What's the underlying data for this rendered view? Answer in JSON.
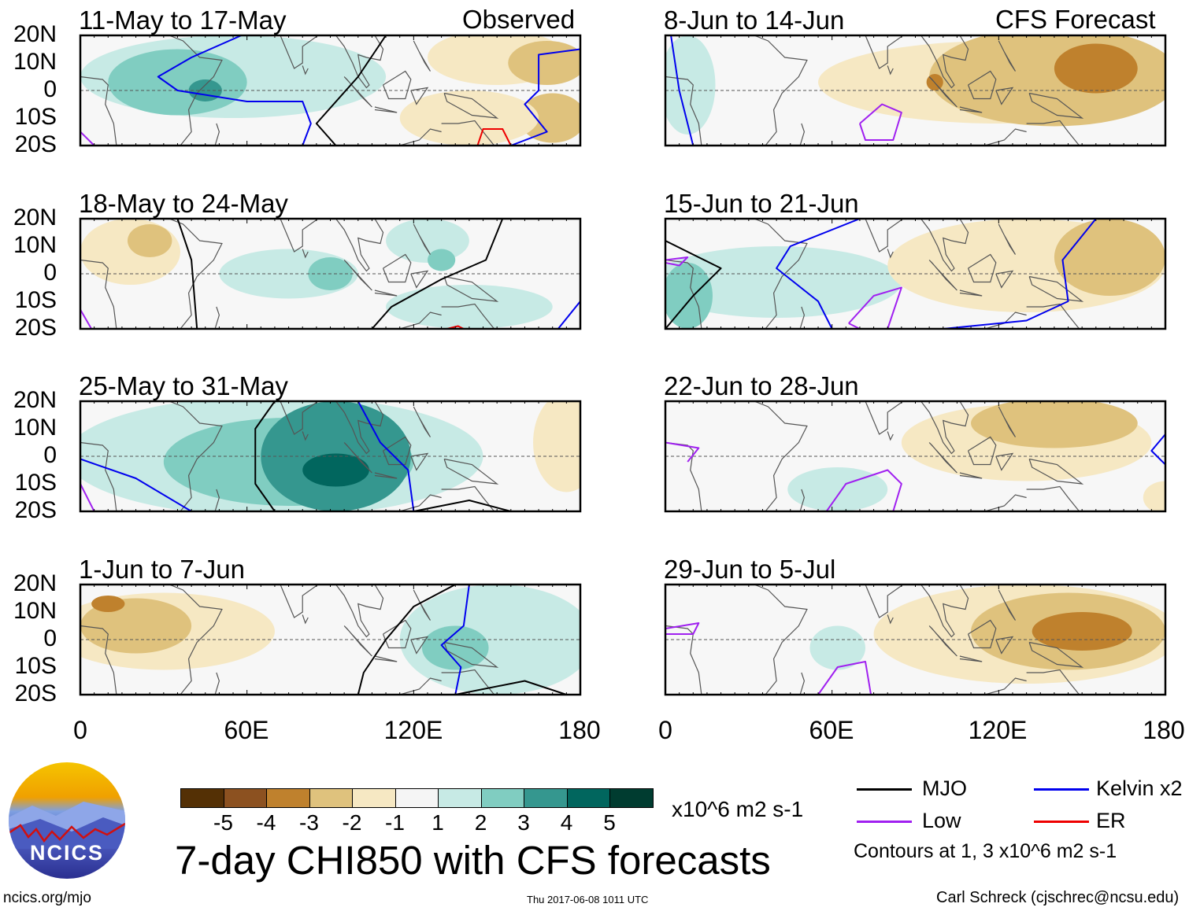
{
  "headers": {
    "observed": "Observed",
    "forecast": "CFS Forecast"
  },
  "y_ticks": [
    "20N",
    "10N",
    "0",
    "10S",
    "20S"
  ],
  "x_ticks": [
    "0",
    "60E",
    "120E",
    "180"
  ],
  "colors": {
    "-5": "#543005",
    "-4": "#8c5120",
    "-3": "#bf812d",
    "-2": "#dfc27d",
    "-1": "#f6e8c3",
    "1": "#c7eae5",
    "2": "#80cdc1",
    "3": "#35978f",
    "4": "#01665e",
    "5": "#003c30",
    "MJO": "#000000",
    "Kelvin": "#0000ee",
    "Low": "#a020f0",
    "ER": "#ee0000"
  },
  "colorbar": {
    "labels": [
      "-5",
      "-4",
      "-3",
      "-2",
      "-1",
      "1",
      "2",
      "3",
      "4",
      "5"
    ],
    "units": "x10^6 m2 s-1"
  },
  "title": "7-day CHI850 with CFS forecasts",
  "timestamp": "Thu 2017-06-08 1011 UTC",
  "legend": {
    "mjo": "MJO",
    "kelvin": "Kelvin x2",
    "low": "Low",
    "er": "ER",
    "contours_note": "Contours at 1, 3 x10^6 m2 s-1"
  },
  "footer": {
    "url": "ncics.org/mjo",
    "author": "Carl Schreck (cjschrec@ncsu.edu)"
  },
  "logo": {
    "text": "NCICS"
  },
  "chart_data": {
    "type": "heatmap",
    "xlim": [
      0,
      180
    ],
    "ylim": [
      -20,
      20
    ],
    "panels": [
      {
        "title": "11-May to 17-May",
        "column": "observed",
        "blobs": [
          [
            55,
            5,
            55,
            15,
            1
          ],
          [
            35,
            3,
            25,
            12,
            2
          ],
          [
            45,
            0,
            6,
            4,
            3
          ],
          [
            150,
            12,
            25,
            10,
            -1
          ],
          [
            168,
            10,
            14,
            8,
            -2
          ],
          [
            170,
            -10,
            12,
            9,
            -2
          ],
          [
            140,
            -10,
            25,
            10,
            -1
          ]
        ],
        "contours": [
          [
            "Kelvin",
            [
              [
                58,
                20
              ],
              [
                40,
                12
              ],
              [
                28,
                5
              ],
              [
                35,
                0
              ],
              [
                60,
                -4
              ],
              [
                80,
                -4
              ],
              [
                83,
                -12
              ],
              [
                80,
                -20
              ]
            ]
          ],
          [
            "MJO",
            [
              [
                110,
                20
              ],
              [
                100,
                5
              ],
              [
                85,
                -12
              ],
              [
                92,
                -20
              ]
            ]
          ],
          [
            "Kelvin",
            [
              [
                180,
                15
              ],
              [
                165,
                13
              ],
              [
                165,
                0
              ],
              [
                160,
                -5
              ],
              [
                168,
                -15
              ],
              [
                155,
                -20
              ]
            ]
          ],
          [
            "ER",
            [
              [
                143,
                -20
              ],
              [
                145,
                -14
              ],
              [
                152,
                -14
              ],
              [
                155,
                -20
              ]
            ]
          ],
          [
            "Low",
            [
              [
                0,
                -15
              ],
              [
                5,
                -20
              ]
            ]
          ]
        ]
      },
      {
        "title": "18-May to 24-May",
        "column": "observed",
        "blobs": [
          [
            18,
            8,
            18,
            12,
            -1
          ],
          [
            25,
            12,
            8,
            6,
            -2
          ],
          [
            75,
            0,
            25,
            9,
            1
          ],
          [
            90,
            0,
            8,
            6,
            2
          ],
          [
            140,
            -12,
            30,
            8,
            1
          ],
          [
            125,
            12,
            15,
            8,
            1
          ],
          [
            130,
            5,
            5,
            4,
            2
          ]
        ],
        "contours": [
          [
            "MJO",
            [
              [
                35,
                20
              ],
              [
                40,
                5
              ],
              [
                42,
                -20
              ]
            ]
          ],
          [
            "MJO",
            [
              [
                152,
                20
              ],
              [
                146,
                5
              ],
              [
                130,
                -2
              ],
              [
                112,
                -12
              ],
              [
                105,
                -20
              ]
            ]
          ],
          [
            "Kelvin",
            [
              [
                172,
                -20
              ],
              [
                180,
                -10
              ]
            ]
          ],
          [
            "ER",
            [
              [
                132,
                -20
              ],
              [
                136,
                -19
              ],
              [
                138,
                -20
              ]
            ]
          ],
          [
            "Low",
            [
              [
                0,
                -13
              ],
              [
                4,
                -20
              ]
            ]
          ]
        ]
      },
      {
        "title": "25-May to 31-May",
        "column": "observed",
        "blobs": [
          [
            70,
            0,
            75,
            22,
            1
          ],
          [
            75,
            -2,
            45,
            16,
            2
          ],
          [
            92,
            0,
            27,
            20,
            3
          ],
          [
            92,
            -5,
            12,
            6,
            4
          ],
          [
            175,
            5,
            12,
            18,
            -1
          ]
        ],
        "contours": [
          [
            "MJO",
            [
              [
                70,
                20
              ],
              [
                63,
                10
              ],
              [
                63,
                -10
              ],
              [
                70,
                -20
              ]
            ]
          ],
          [
            "MJO",
            [
              [
                120,
                -20
              ],
              [
                140,
                -16
              ],
              [
                155,
                -20
              ]
            ]
          ],
          [
            "Kelvin",
            [
              [
                0,
                -1
              ],
              [
                20,
                -8
              ],
              [
                40,
                -20
              ]
            ]
          ],
          [
            "Kelvin",
            [
              [
                100,
                20
              ],
              [
                108,
                5
              ],
              [
                118,
                -5
              ],
              [
                120,
                -20
              ]
            ]
          ],
          [
            "Low",
            [
              [
                0,
                -10
              ],
              [
                5,
                -20
              ]
            ]
          ]
        ]
      },
      {
        "title": "1-Jun to 7-Jun",
        "column": "observed",
        "blobs": [
          [
            30,
            3,
            40,
            14,
            -1
          ],
          [
            20,
            5,
            20,
            10,
            -2
          ],
          [
            10,
            13,
            6,
            3,
            -3
          ],
          [
            150,
            0,
            35,
            20,
            1
          ],
          [
            135,
            -3,
            12,
            8,
            2
          ]
        ],
        "contours": [
          [
            "MJO",
            [
              [
                135,
                20
              ],
              [
                120,
                12
              ],
              [
                110,
                0
              ],
              [
                102,
                -12
              ],
              [
                100,
                -20
              ]
            ]
          ],
          [
            "MJO",
            [
              [
                135,
                -20
              ],
              [
                160,
                -15
              ],
              [
                175,
                -20
              ]
            ]
          ],
          [
            "Kelvin",
            [
              [
                140,
                20
              ],
              [
                138,
                5
              ],
              [
                130,
                -2
              ],
              [
                137,
                -10
              ],
              [
                135,
                -20
              ]
            ]
          ]
        ]
      },
      {
        "title": "8-Jun to 14-Jun",
        "column": "forecast",
        "blobs": [
          [
            120,
            3,
            65,
            15,
            -1
          ],
          [
            140,
            5,
            45,
            18,
            -2
          ],
          [
            155,
            8,
            15,
            9,
            -3
          ],
          [
            97,
            3,
            3,
            3,
            -3
          ],
          [
            8,
            2,
            10,
            18,
            1
          ]
        ],
        "contours": [
          [
            "Kelvin",
            [
              [
                2,
                20
              ],
              [
                5,
                0
              ],
              [
                10,
                -20
              ]
            ]
          ],
          [
            "Low",
            [
              [
                70,
                -12
              ],
              [
                78,
                -5
              ],
              [
                85,
                -8
              ],
              [
                82,
                -18
              ],
              [
                72,
                -18
              ],
              [
                70,
                -12
              ]
            ]
          ]
        ]
      },
      {
        "title": "15-Jun to 21-Jun",
        "column": "forecast",
        "blobs": [
          [
            40,
            -3,
            45,
            13,
            1
          ],
          [
            8,
            -8,
            9,
            12,
            2
          ],
          [
            130,
            3,
            50,
            17,
            -1
          ],
          [
            160,
            6,
            20,
            14,
            -2
          ]
        ],
        "contours": [
          [
            "MJO",
            [
              [
                0,
                12
              ],
              [
                20,
                2
              ],
              [
                10,
                -8
              ],
              [
                0,
                -20
              ]
            ]
          ],
          [
            "Kelvin",
            [
              [
                70,
                20
              ],
              [
                45,
                10
              ],
              [
                40,
                2
              ],
              [
                55,
                -10
              ],
              [
                60,
                -20
              ]
            ]
          ],
          [
            "Kelvin",
            [
              [
                100,
                -20
              ],
              [
                130,
                -17
              ],
              [
                145,
                -10
              ],
              [
                143,
                5
              ],
              [
                155,
                20
              ]
            ]
          ],
          [
            "Low",
            [
              [
                66,
                -18
              ],
              [
                75,
                -8
              ],
              [
                85,
                -5
              ],
              [
                80,
                -20
              ],
              [
                70,
                -20
              ],
              [
                66,
                -18
              ]
            ]
          ],
          [
            "Low",
            [
              [
                0,
                5
              ],
              [
                8,
                6
              ],
              [
                5,
                3
              ],
              [
                0,
                4
              ]
            ]
          ]
        ]
      },
      {
        "title": "22-Jun to 28-Jun",
        "column": "forecast",
        "blobs": [
          [
            130,
            5,
            45,
            14,
            -1
          ],
          [
            140,
            12,
            30,
            9,
            -2
          ],
          [
            180,
            -15,
            8,
            6,
            -1
          ],
          [
            62,
            -12,
            18,
            8,
            1
          ]
        ],
        "contours": [
          [
            "Low",
            [
              [
                58,
                -20
              ],
              [
                65,
                -10
              ],
              [
                80,
                -5
              ],
              [
                85,
                -10
              ],
              [
                82,
                -20
              ]
            ]
          ],
          [
            "Low",
            [
              [
                0,
                5
              ],
              [
                12,
                3
              ],
              [
                8,
                -2
              ]
            ]
          ],
          [
            "Kelvin",
            [
              [
                180,
                8
              ],
              [
                175,
                2
              ],
              [
                180,
                -3
              ]
            ]
          ]
        ]
      },
      {
        "title": "29-Jun to 5-Jul",
        "column": "forecast",
        "blobs": [
          [
            130,
            2,
            55,
            18,
            -1
          ],
          [
            145,
            3,
            35,
            14,
            -2
          ],
          [
            150,
            3,
            18,
            7,
            -3
          ],
          [
            62,
            -3,
            10,
            8,
            1
          ]
        ],
        "contours": [
          [
            "Low",
            [
              [
                55,
                -20
              ],
              [
                62,
                -10
              ],
              [
                72,
                -8
              ],
              [
                74,
                -20
              ]
            ]
          ],
          [
            "Low",
            [
              [
                0,
                4
              ],
              [
                12,
                6
              ],
              [
                10,
                2
              ],
              [
                0,
                2
              ]
            ]
          ]
        ]
      }
    ]
  }
}
